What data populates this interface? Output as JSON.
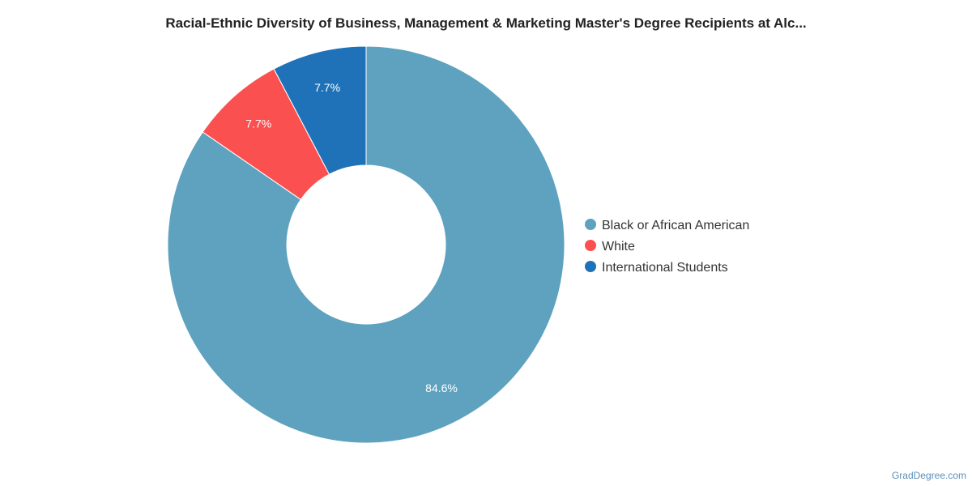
{
  "chart_data": {
    "type": "pie",
    "title": "Racial-Ethnic Diversity of Business, Management & Marketing Master's Degree Recipients at Alc...",
    "donut": true,
    "categories": [
      "Black or African American",
      "White",
      "International Students"
    ],
    "values": [
      84.6,
      7.7,
      7.7
    ],
    "data_labels": [
      "84.6%",
      "7.7%",
      "7.7%"
    ],
    "colors": [
      "#5ea2bf",
      "#fa5050",
      "#1f72b8"
    ],
    "legend_position": "right"
  },
  "watermark": "GradDegree.com"
}
